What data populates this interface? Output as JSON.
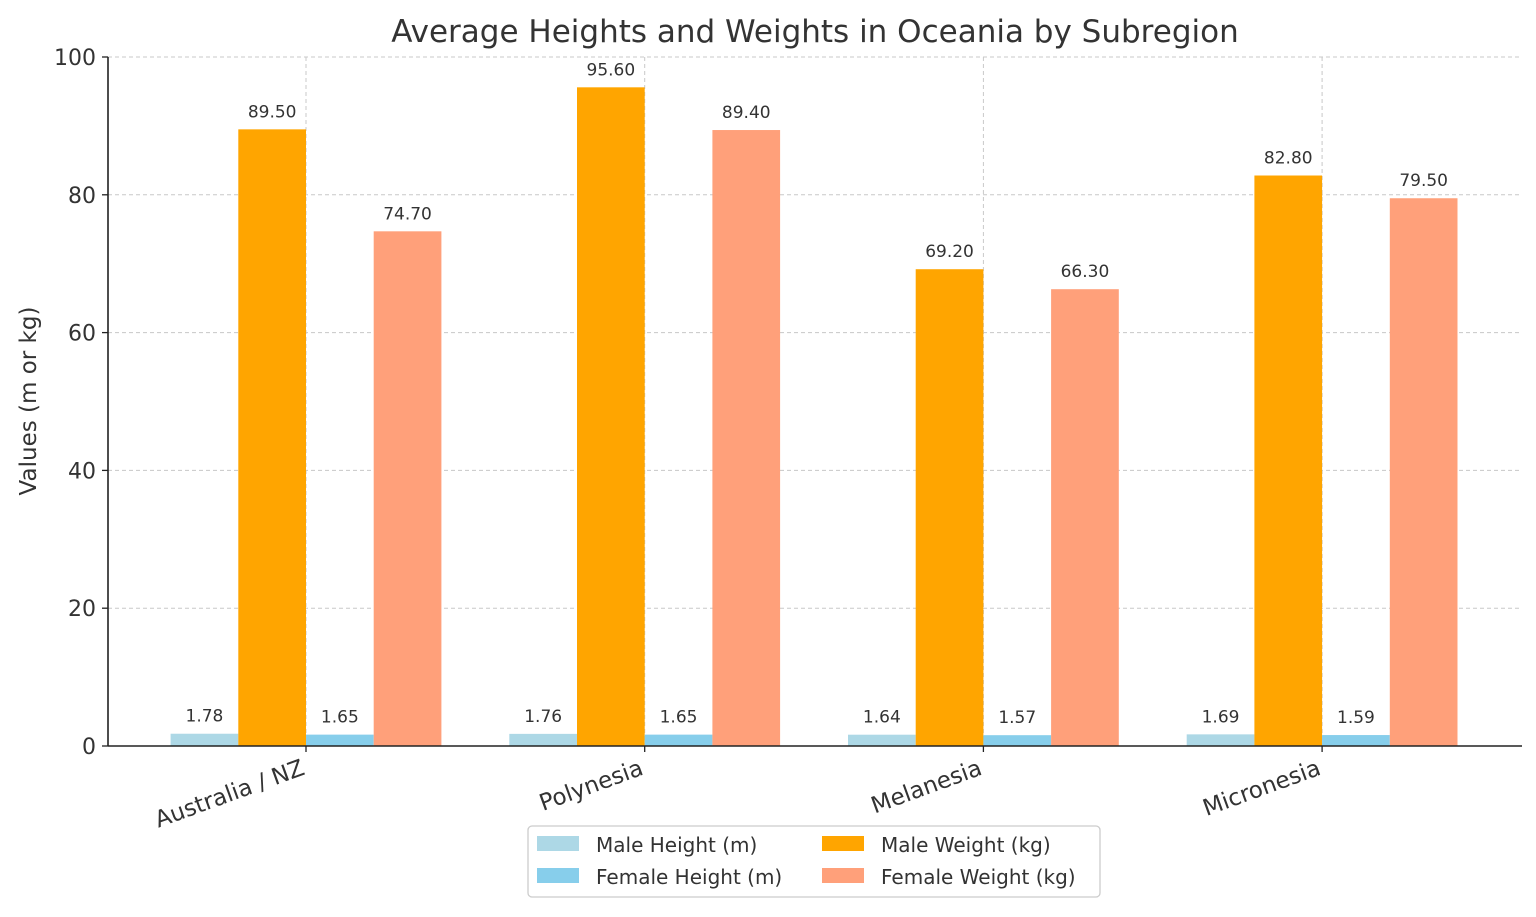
{
  "chart_data": {
    "type": "bar",
    "title": "Average Heights and Weights in Oceania by Subregion",
    "xlabel": "",
    "ylabel": "Values (m or kg)",
    "ylim": [
      0,
      100
    ],
    "yticks": [
      0,
      20,
      40,
      60,
      80,
      100
    ],
    "grid": true,
    "legend_placement": "bottom-center",
    "categories": [
      "Australia / NZ",
      "Polynesia",
      "Melanesia",
      "Micronesia"
    ],
    "series": [
      {
        "name": "Male Height (m)",
        "color": "#add8e6",
        "values": [
          1.78,
          1.76,
          1.64,
          1.69
        ]
      },
      {
        "name": "Male Weight (kg)",
        "color": "#ffa500",
        "values": [
          89.5,
          95.6,
          69.2,
          82.8
        ]
      },
      {
        "name": "Female Height (m)",
        "color": "#87ceeb",
        "values": [
          1.65,
          1.65,
          1.57,
          1.59
        ]
      },
      {
        "name": "Female Weight (kg)",
        "color": "#ffa07a",
        "values": [
          74.7,
          89.4,
          66.3,
          79.5
        ]
      }
    ]
  }
}
